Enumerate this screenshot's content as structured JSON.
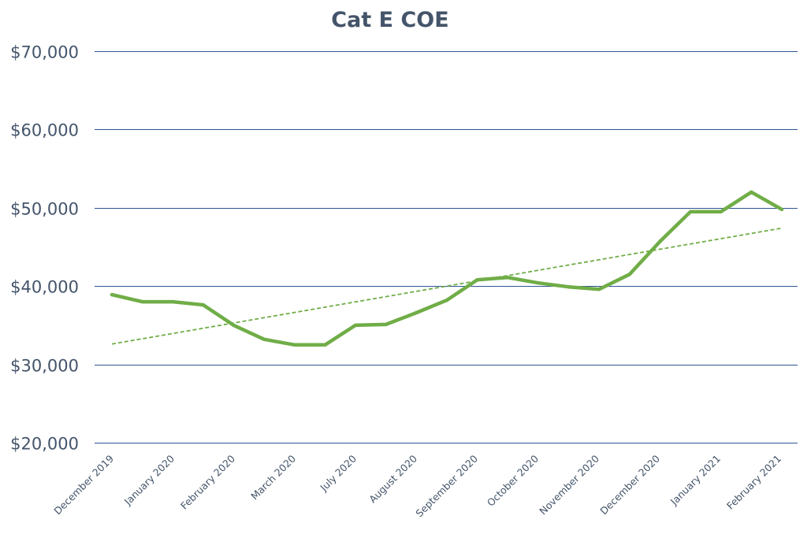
{
  "chart_data": {
    "type": "line",
    "title": "Cat E COE",
    "xlabel": "",
    "ylabel": "",
    "ylim": [
      20000,
      70000
    ],
    "y_ticks": [
      20000,
      30000,
      40000,
      50000,
      60000,
      70000
    ],
    "y_tick_labels": [
      "$20,000",
      "$30,000",
      "$40,000",
      "$50,000",
      "$60,000",
      "$70,000"
    ],
    "grid": true,
    "legend": "none",
    "colors": {
      "series": "#70ad47",
      "gridline": "#2f5496",
      "text": "#44546a"
    },
    "x_tick_labels": [
      "December 2019",
      "January 2020",
      "February 2020",
      "March 2020",
      "July 2020",
      "August 2020",
      "September 2020",
      "October 2020",
      "November 2020",
      "December 2020",
      "January 2021",
      "February 2021"
    ],
    "series": [
      {
        "values": [
          38900,
          38000,
          38000,
          37600,
          35000,
          33200,
          32500,
          32500,
          35000,
          35100,
          36600,
          38200,
          40800,
          41100,
          40400,
          39900,
          39600,
          41500,
          45700,
          49500,
          49500,
          52000,
          49800
        ]
      }
    ],
    "trendline": {
      "type": "linear",
      "start": 32600,
      "end": 47400
    }
  }
}
